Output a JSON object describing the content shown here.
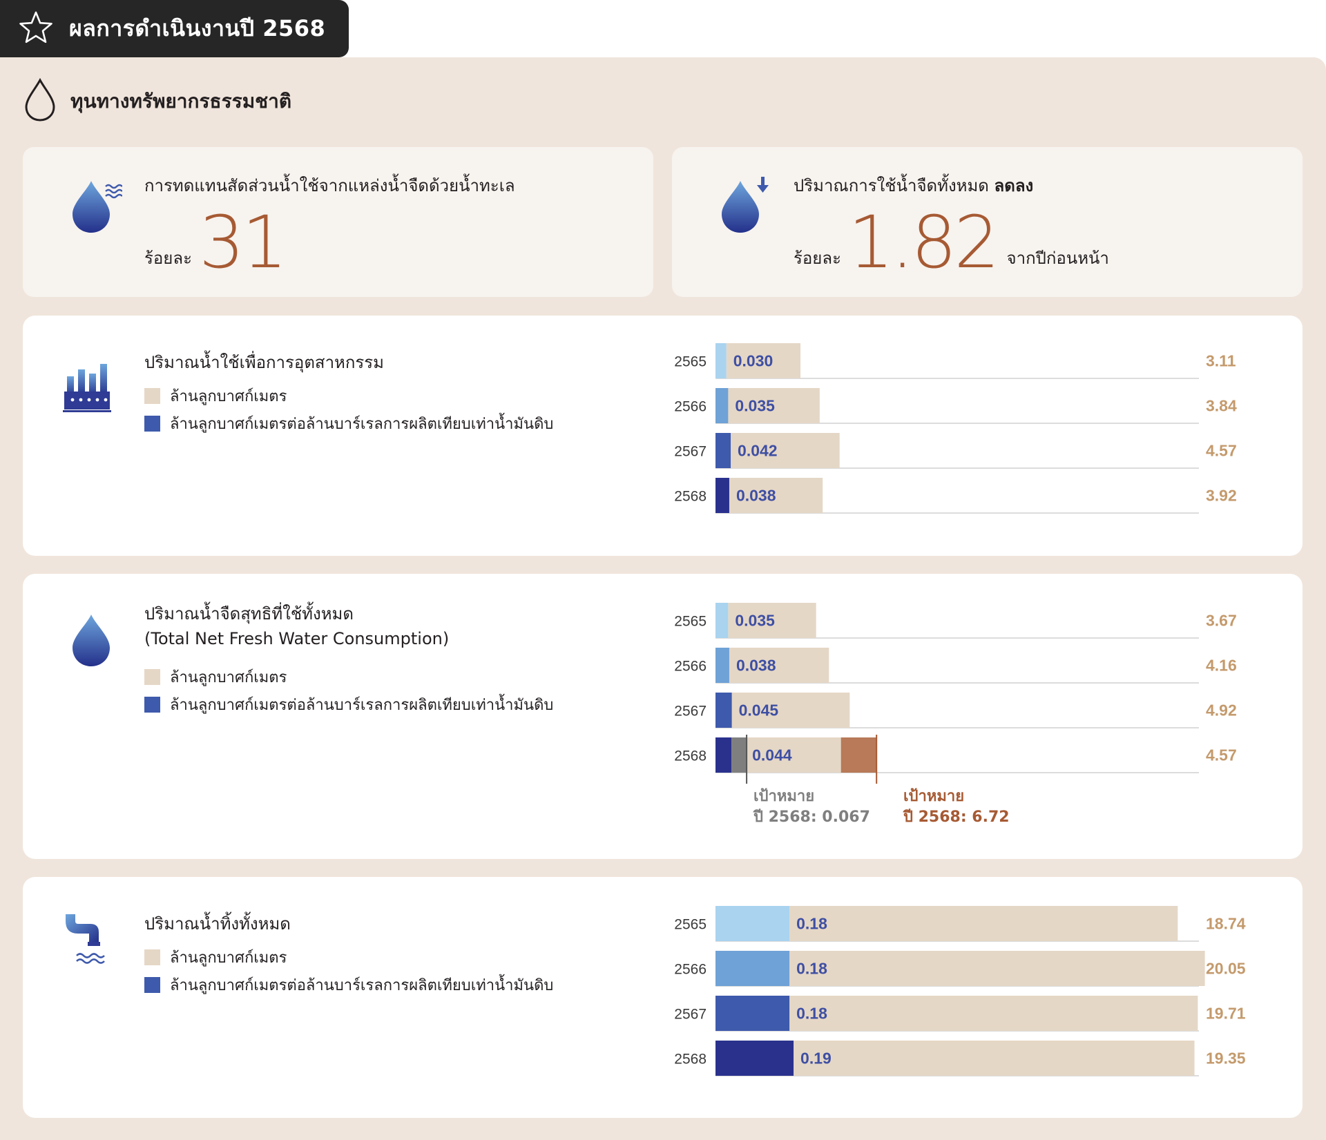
{
  "header": {
    "title": "ผลการดำเนินงานปี 2568",
    "icon": "star-icon"
  },
  "section": {
    "title": "ทุนทางทรัพยากรธรรมชาติ",
    "icon": "water-drop-outline-icon"
  },
  "kpis": [
    {
      "icon": "water-drop-waves-icon",
      "label": "การทดแทนสัดส่วนน้ำใช้จากแหล่งน้ำจืดด้วยน้ำทะเล",
      "label_bold": "",
      "prefix": "ร้อยละ",
      "value": "31",
      "suffix": ""
    },
    {
      "icon": "water-drop-down-arrow-icon",
      "label": "ปริมาณการใช้น้ำจืดทั้งหมด ",
      "label_bold": "ลดลง",
      "prefix": "ร้อยละ",
      "value": "1.82",
      "suffix": "จากปีก่อนหน้า"
    }
  ],
  "legend": {
    "volume": "ล้านลูกบาศก์เมตร",
    "intensity": "ล้านลูกบาศก์เมตรต่อล้านบาร์เรลการผลิตเทียบเท่าน้ำมันดิบ"
  },
  "colors": {
    "volume_bar": "#e5d7c6",
    "y2565": "#a9d3ef",
    "y2566": "#6fa2d6",
    "y2567": "#3e5aac",
    "y2568": "#2a318d",
    "value_blue": "#3e4fa3",
    "value_tan": "#c49a6c",
    "target_grey": "#7f7f7f",
    "target_brown": "#b87a58",
    "accent": "#a65a33"
  },
  "chart_data": [
    {
      "type": "bar",
      "title": "ปริมาณน้ำใช้เพื่อการอุตสาหกรรม",
      "subtitle": "",
      "icon": "factory-icon",
      "categories": [
        "2565",
        "2566",
        "2567",
        "2568"
      ],
      "series": [
        {
          "name": "ล้านลูกบาศก์เมตร",
          "values": [
            3.11,
            3.84,
            4.57,
            3.92
          ]
        },
        {
          "name": "ล้านลูกบาศก์เมตรต่อล้านบาร์เรลการผลิตเทียบเท่าน้ำมันดิบ",
          "values": [
            0.03,
            0.035,
            0.042,
            0.038
          ],
          "labels": [
            "0.030",
            "0.035",
            "0.042",
            "0.038"
          ]
        }
      ],
      "volume_labels": [
        "3.11",
        "3.84",
        "4.57",
        "3.92"
      ],
      "targets": []
    },
    {
      "type": "bar",
      "title": "ปริมาณน้ำจืดสุทธิที่ใช้ทั้งหมด",
      "subtitle": "(Total Net Fresh Water Consumption)",
      "icon": "water-drop-icon",
      "categories": [
        "2565",
        "2566",
        "2567",
        "2568"
      ],
      "series": [
        {
          "name": "ล้านลูกบาศก์เมตร",
          "values": [
            3.67,
            4.16,
            4.92,
            4.57
          ]
        },
        {
          "name": "ล้านลูกบาศก์เมตรต่อล้านบาร์เรลการผลิตเทียบเท่าน้ำมันดิบ",
          "values": [
            0.035,
            0.038,
            0.045,
            0.044
          ],
          "labels": [
            "0.035",
            "0.038",
            "0.045",
            "0.044"
          ]
        }
      ],
      "volume_labels": [
        "3.67",
        "4.16",
        "4.92",
        "4.57"
      ],
      "targets": [
        {
          "series": "intensity",
          "year": "2568",
          "value": 0.067,
          "line1": "เป้าหมาย",
          "line2": "ปี 2568: 0.067"
        },
        {
          "series": "volume",
          "year": "2568",
          "value": 6.72,
          "line1": "เป้าหมาย",
          "line2": "ปี 2568: 6.72"
        }
      ]
    },
    {
      "type": "bar",
      "title": "ปริมาณน้ำทิ้งทั้งหมด",
      "subtitle": "",
      "icon": "discharge-pipe-icon",
      "categories": [
        "2565",
        "2566",
        "2567",
        "2568"
      ],
      "series": [
        {
          "name": "ล้านลูกบาศก์เมตร",
          "values": [
            18.74,
            20.05,
            19.71,
            19.35
          ]
        },
        {
          "name": "ล้านลูกบาศก์เมตรต่อล้านบาร์เรลการผลิตเทียบเท่าน้ำมันดิบ",
          "values": [
            0.18,
            0.18,
            0.18,
            0.19
          ],
          "labels": [
            "0.18",
            "0.18",
            "0.18",
            "0.19"
          ]
        }
      ],
      "volume_labels": [
        "18.74",
        "20.05",
        "19.71",
        "19.35"
      ],
      "targets": []
    }
  ]
}
